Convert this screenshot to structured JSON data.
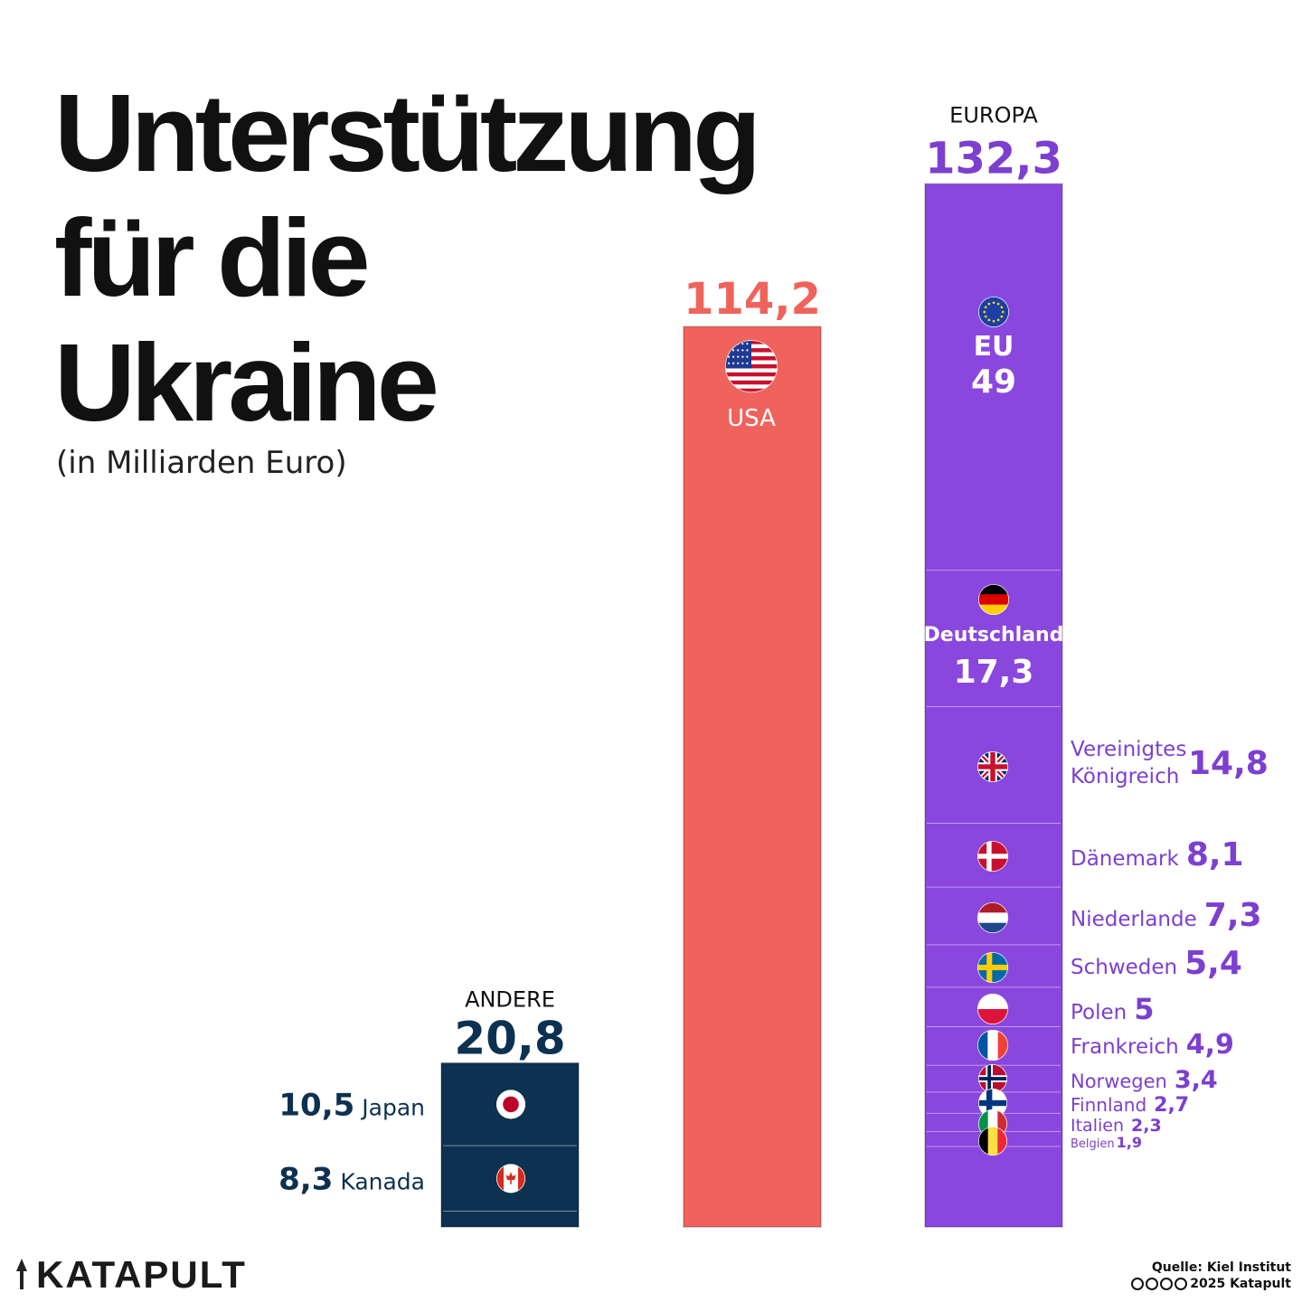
{
  "title_lines": [
    "Unterstützung",
    "für die",
    "Ukraine"
  ],
  "subtitle": "(in Milliarden Euro)",
  "logo": "KATAPULT",
  "footer": {
    "source": "Quelle: Kiel Institut",
    "copyright": "2025 Katapult"
  },
  "colors": {
    "andere": "#0d3150",
    "usa": "#f0635c",
    "europa": "#8a47dd",
    "europa_label": "#7c3fd0"
  },
  "chart_data": {
    "type": "bar",
    "unit": "in Milliarden Euro",
    "groups": [
      {
        "name": "ANDERE",
        "total": 20.8,
        "total_label": "20,8",
        "segments": [
          {
            "name": "Japan",
            "value": 10.5,
            "label": "10,5",
            "icon": "japan-flag-icon"
          },
          {
            "name": "Kanada",
            "value": 8.3,
            "label": "8,3",
            "icon": "canada-flag-icon"
          },
          {
            "name": "",
            "value": 2.0,
            "label": ""
          }
        ]
      },
      {
        "name": "",
        "total": 114.2,
        "total_label": "114,2",
        "segments": [
          {
            "name": "USA",
            "value": 114.2,
            "label": "",
            "icon": "usa-flag-icon"
          }
        ]
      },
      {
        "name": "EUROPA",
        "total": 132.3,
        "total_label": "132,3",
        "segments": [
          {
            "name": "EU",
            "value": 49,
            "label": "49",
            "icon": "eu-flag-icon"
          },
          {
            "name": "Deutschland",
            "value": 17.3,
            "label": "17,3",
            "icon": "germany-flag-icon"
          },
          {
            "name": "Vereinigtes Königreich",
            "value": 14.8,
            "label": "14,8",
            "icon": "uk-flag-icon"
          },
          {
            "name": "Dänemark",
            "value": 8.1,
            "label": "8,1",
            "icon": "denmark-flag-icon"
          },
          {
            "name": "Niederlande",
            "value": 7.3,
            "label": "7,3",
            "icon": "netherlands-flag-icon"
          },
          {
            "name": "Schweden",
            "value": 5.4,
            "label": "5,4",
            "icon": "sweden-flag-icon"
          },
          {
            "name": "Polen",
            "value": 5,
            "label": "5",
            "icon": "poland-flag-icon"
          },
          {
            "name": "Frankreich",
            "value": 4.9,
            "label": "4,9",
            "icon": "france-flag-icon"
          },
          {
            "name": "Norwegen",
            "value": 3.4,
            "label": "3,4",
            "icon": "norway-flag-icon"
          },
          {
            "name": "Finnland",
            "value": 2.7,
            "label": "2,7",
            "icon": "finland-flag-icon"
          },
          {
            "name": "Italien",
            "value": 2.3,
            "label": "2,3",
            "icon": "italy-flag-icon"
          },
          {
            "name": "Belgien",
            "value": 1.9,
            "label": "1,9",
            "icon": "belgium-flag-icon"
          },
          {
            "name": "",
            "value": 10.2,
            "label": ""
          }
        ]
      }
    ]
  }
}
